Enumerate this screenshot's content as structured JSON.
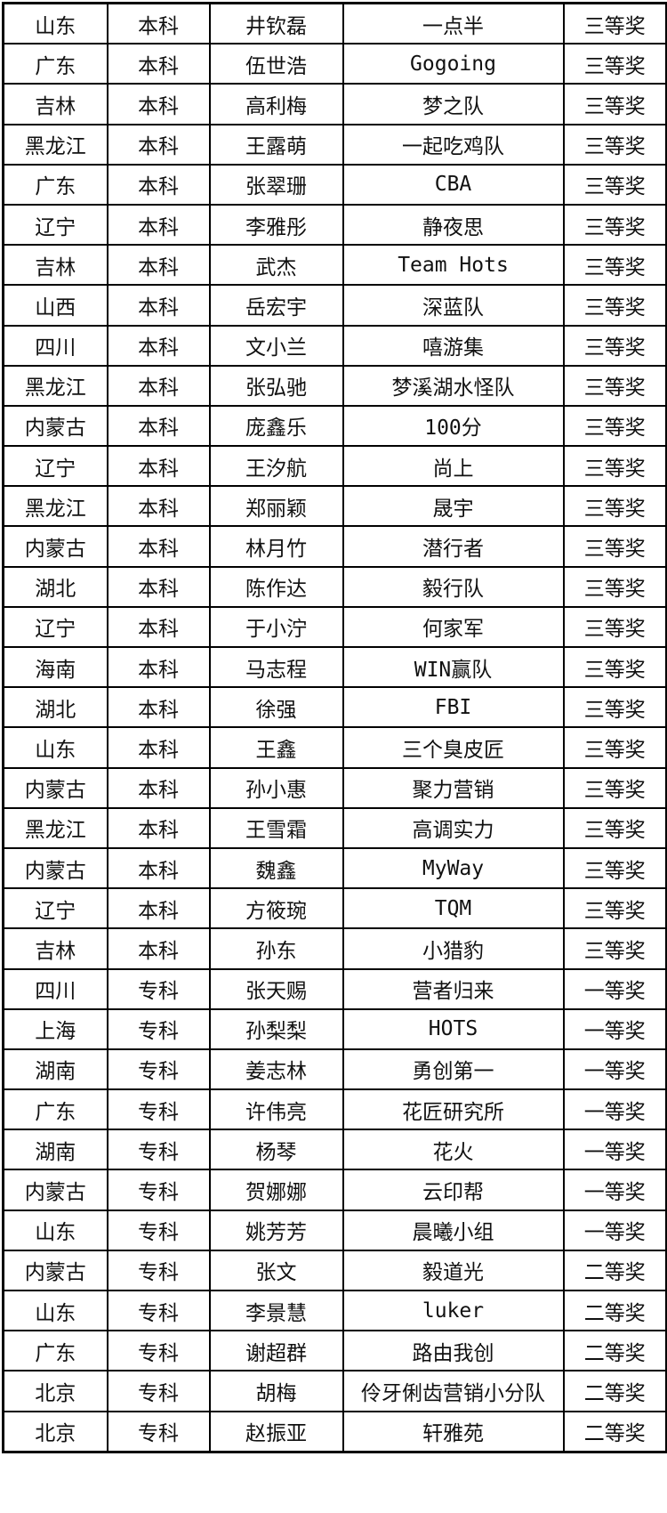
{
  "rows": [
    [
      "山东",
      "本科",
      "井钦磊",
      "一点半",
      "三等奖"
    ],
    [
      "广东",
      "本科",
      "伍世浩",
      "Gogoing",
      "三等奖"
    ],
    [
      "吉林",
      "本科",
      "高利梅",
      "梦之队",
      "三等奖"
    ],
    [
      "黑龙江",
      "本科",
      "王露萌",
      "一起吃鸡队",
      "三等奖"
    ],
    [
      "广东",
      "本科",
      "张翠珊",
      "CBA",
      "三等奖"
    ],
    [
      "辽宁",
      "本科",
      "李雅彤",
      "静夜思",
      "三等奖"
    ],
    [
      "吉林",
      "本科",
      "武杰",
      "Team Hots",
      "三等奖"
    ],
    [
      "山西",
      "本科",
      "岳宏宇",
      "深蓝队",
      "三等奖"
    ],
    [
      "四川",
      "本科",
      "文小兰",
      "嘻游集",
      "三等奖"
    ],
    [
      "黑龙江",
      "本科",
      "张弘驰",
      "梦溪湖水怪队",
      "三等奖"
    ],
    [
      "内蒙古",
      "本科",
      "庞鑫乐",
      "100分",
      "三等奖"
    ],
    [
      "辽宁",
      "本科",
      "王汐航",
      "尚上",
      "三等奖"
    ],
    [
      "黑龙江",
      "本科",
      "郑丽颖",
      "晟宇",
      "三等奖"
    ],
    [
      "内蒙古",
      "本科",
      "林月竹",
      "潜行者",
      "三等奖"
    ],
    [
      "湖北",
      "本科",
      "陈作达",
      "毅行队",
      "三等奖"
    ],
    [
      "辽宁",
      "本科",
      "于小泞",
      "何家军",
      "三等奖"
    ],
    [
      "海南",
      "本科",
      "马志程",
      "WIN赢队",
      "三等奖"
    ],
    [
      "湖北",
      "本科",
      "徐强",
      "FBI",
      "三等奖"
    ],
    [
      "山东",
      "本科",
      "王鑫",
      "三个臭皮匠",
      "三等奖"
    ],
    [
      "内蒙古",
      "本科",
      "孙小惠",
      "聚力营销",
      "三等奖"
    ],
    [
      "黑龙江",
      "本科",
      "王雪霜",
      "高调实力",
      "三等奖"
    ],
    [
      "内蒙古",
      "本科",
      "魏鑫",
      "MyWay",
      "三等奖"
    ],
    [
      "辽宁",
      "本科",
      "方筱琬",
      "TQM",
      "三等奖"
    ],
    [
      "吉林",
      "本科",
      "孙东",
      "小猎豹",
      "三等奖"
    ],
    [
      "四川",
      "专科",
      "张天赐",
      "营者归来",
      "一等奖"
    ],
    [
      "上海",
      "专科",
      "孙梨梨",
      "HOTS",
      "一等奖"
    ],
    [
      "湖南",
      "专科",
      "姜志林",
      "勇创第一",
      "一等奖"
    ],
    [
      "广东",
      "专科",
      "许伟亮",
      "花匠研究所",
      "一等奖"
    ],
    [
      "湖南",
      "专科",
      "杨琴",
      "花火",
      "一等奖"
    ],
    [
      "内蒙古",
      "专科",
      "贺娜娜",
      "云印帮",
      "一等奖"
    ],
    [
      "山东",
      "专科",
      "姚芳芳",
      "晨曦小组",
      "一等奖"
    ],
    [
      "内蒙古",
      "专科",
      "张文",
      "毅道光",
      "二等奖"
    ],
    [
      "山东",
      "专科",
      "李景慧",
      "luker",
      "二等奖"
    ],
    [
      "广东",
      "专科",
      "谢超群",
      "路由我创",
      "二等奖"
    ],
    [
      "北京",
      "专科",
      "胡梅",
      "伶牙俐齿营销小分队",
      "二等奖"
    ],
    [
      "北京",
      "专科",
      "赵振亚",
      "轩雅苑",
      "二等奖"
    ]
  ]
}
